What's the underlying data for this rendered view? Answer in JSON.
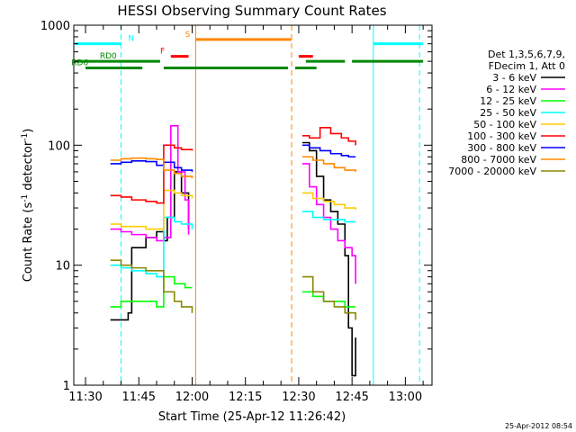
{
  "chart_data": {
    "type": "line",
    "title": "HESSI Observing Summary Count Rates",
    "ylabel_main": "Count Rate (s",
    "ylabel_sup": "-1",
    "ylabel_mid": " detector",
    "ylabel_sup2": "-1",
    "ylabel_end": ")",
    "xlabel": "Start Time (25-Apr-12 11:26:42)",
    "timestamp": "25-Apr-2012 08:54",
    "y_scale": "log",
    "ylim": [
      1,
      1000
    ],
    "xlim": [
      "11:26:42",
      "13:07:30"
    ],
    "y_ticks": [
      "1",
      "10",
      "100",
      "1000"
    ],
    "x_ticks": [
      "11:30",
      "11:45",
      "12:00",
      "12:15",
      "12:30",
      "12:45",
      "13:00"
    ],
    "legend_header": [
      "Det 1,3,5,6,7,9,",
      "FDecim 1, Att 0"
    ],
    "series": [
      {
        "name": "3 - 6 keV",
        "color": "#000000",
        "segments": [
          [
            [
              "11:37",
              3.5
            ],
            [
              "11:42",
              4
            ],
            [
              "11:43",
              14
            ],
            [
              "11:47",
              17
            ],
            [
              "11:50",
              19
            ],
            [
              "11:52",
              16
            ],
            [
              "11:53",
              25
            ],
            [
              "11:55",
              60
            ],
            [
              "11:57",
              40
            ],
            [
              "11:59",
              20
            ]
          ],
          [
            [
              "12:31",
              105
            ],
            [
              "12:33",
              90
            ],
            [
              "12:35",
              55
            ],
            [
              "12:37",
              35
            ],
            [
              "12:39",
              28
            ],
            [
              "12:41",
              22
            ],
            [
              "12:43",
              12
            ],
            [
              "12:44",
              3
            ],
            [
              "12:45",
              1.2
            ],
            [
              "12:46",
              2.5
            ]
          ]
        ]
      },
      {
        "name": "6 - 12 keV",
        "color": "#ff00ff",
        "segments": [
          [
            [
              "11:37",
              20
            ],
            [
              "11:40",
              19
            ],
            [
              "11:43",
              18
            ],
            [
              "11:47",
              17
            ],
            [
              "11:50",
              16
            ],
            [
              "11:52",
              17
            ],
            [
              "11:54",
              145
            ],
            [
              "11:56",
              60
            ],
            [
              "11:58",
              35
            ],
            [
              "11:59",
              18
            ]
          ],
          [
            [
              "12:31",
              70
            ],
            [
              "12:33",
              45
            ],
            [
              "12:35",
              32
            ],
            [
              "12:37",
              25
            ],
            [
              "12:39",
              20
            ],
            [
              "12:41",
              16
            ],
            [
              "12:43",
              14
            ],
            [
              "12:45",
              12
            ],
            [
              "12:46",
              7
            ]
          ]
        ]
      },
      {
        "name": "12 - 25 keV",
        "color": "#00ff00",
        "segments": [
          [
            [
              "11:37",
              4.5
            ],
            [
              "11:40",
              5
            ],
            [
              "11:43",
              5
            ],
            [
              "11:47",
              5
            ],
            [
              "11:50",
              4.5
            ],
            [
              "11:52",
              8
            ],
            [
              "11:55",
              7
            ],
            [
              "11:58",
              6.5
            ],
            [
              "12:00",
              6.5
            ]
          ],
          [
            [
              "12:31",
              6
            ],
            [
              "12:34",
              5.5
            ],
            [
              "12:37",
              5
            ],
            [
              "12:40",
              5
            ],
            [
              "12:43",
              4.5
            ],
            [
              "12:46",
              4.5
            ]
          ]
        ]
      },
      {
        "name": "25 - 50 keV",
        "color": "#00ffff",
        "segments": [
          [
            [
              "11:37",
              10
            ],
            [
              "11:40",
              9.5
            ],
            [
              "11:43",
              9
            ],
            [
              "11:47",
              8.5
            ],
            [
              "11:50",
              8
            ],
            [
              "11:52",
              25
            ],
            [
              "11:55",
              23
            ],
            [
              "11:57",
              22
            ],
            [
              "12:00",
              20
            ]
          ],
          [
            [
              "12:31",
              28
            ],
            [
              "12:34",
              25
            ],
            [
              "12:37",
              24
            ],
            [
              "12:40",
              24
            ],
            [
              "12:43",
              23
            ],
            [
              "12:46",
              23
            ]
          ]
        ]
      },
      {
        "name": "50 - 100 keV",
        "color": "#ffcc00",
        "segments": [
          [
            [
              "11:37",
              22
            ],
            [
              "11:40",
              21
            ],
            [
              "11:43",
              21
            ],
            [
              "11:47",
              20
            ],
            [
              "11:50",
              20
            ],
            [
              "11:52",
              42
            ],
            [
              "11:55",
              40
            ],
            [
              "11:57",
              38
            ],
            [
              "12:00",
              36
            ]
          ],
          [
            [
              "12:31",
              40
            ],
            [
              "12:34",
              36
            ],
            [
              "12:37",
              34
            ],
            [
              "12:40",
              32
            ],
            [
              "12:43",
              30
            ],
            [
              "12:46",
              29
            ]
          ]
        ]
      },
      {
        "name": "100 - 300 keV",
        "color": "#ff0000",
        "segments": [
          [
            [
              "11:37",
              38
            ],
            [
              "11:40",
              37
            ],
            [
              "11:43",
              35
            ],
            [
              "11:47",
              34
            ],
            [
              "11:50",
              33
            ],
            [
              "11:52",
              100
            ],
            [
              "11:55",
              95
            ],
            [
              "11:57",
              92
            ],
            [
              "12:00",
              90
            ]
          ],
          [
            [
              "12:31",
              120
            ],
            [
              "12:33",
              115
            ],
            [
              "12:36",
              140
            ],
            [
              "12:39",
              125
            ],
            [
              "12:42",
              115
            ],
            [
              "12:44",
              108
            ],
            [
              "12:46",
              100
            ]
          ]
        ]
      },
      {
        "name": "300 - 800 keV",
        "color": "#0000ff",
        "segments": [
          [
            [
              "11:37",
              70
            ],
            [
              "11:40",
              72
            ],
            [
              "11:43",
              74
            ],
            [
              "11:47",
              73
            ],
            [
              "11:50",
              68
            ],
            [
              "11:52",
              72
            ],
            [
              "11:55",
              65
            ],
            [
              "11:57",
              62
            ],
            [
              "12:00",
              60
            ]
          ],
          [
            [
              "12:31",
              100
            ],
            [
              "12:33",
              95
            ],
            [
              "12:36",
              90
            ],
            [
              "12:39",
              85
            ],
            [
              "12:42",
              82
            ],
            [
              "12:44",
              80
            ],
            [
              "12:46",
              80
            ]
          ]
        ]
      },
      {
        "name": "800 - 7000 keV",
        "color": "#ff8800",
        "segments": [
          [
            [
              "11:37",
              75
            ],
            [
              "11:40",
              77
            ],
            [
              "11:43",
              78
            ],
            [
              "11:47",
              77
            ],
            [
              "11:50",
              76
            ],
            [
              "11:52",
              62
            ],
            [
              "11:55",
              58
            ],
            [
              "11:57",
              55
            ],
            [
              "12:00",
              53
            ]
          ],
          [
            [
              "12:31",
              80
            ],
            [
              "12:34",
              75
            ],
            [
              "12:37",
              70
            ],
            [
              "12:40",
              65
            ],
            [
              "12:43",
              62
            ],
            [
              "12:46",
              60
            ]
          ]
        ]
      },
      {
        "name": "7000 - 20000 keV",
        "color": "#888800",
        "segments": [
          [
            [
              "11:37",
              11
            ],
            [
              "11:40",
              10
            ],
            [
              "11:43",
              9.5
            ],
            [
              "11:47",
              9
            ],
            [
              "11:50",
              9
            ],
            [
              "11:52",
              6
            ],
            [
              "11:55",
              5
            ],
            [
              "11:57",
              4.5
            ],
            [
              "12:00",
              4
            ]
          ],
          [
            [
              "12:31",
              8
            ],
            [
              "12:34",
              6
            ],
            [
              "12:37",
              5
            ],
            [
              "12:40",
              4.5
            ],
            [
              "12:43",
              4
            ],
            [
              "12:46",
              3.5
            ]
          ]
        ]
      }
    ],
    "flags": [
      {
        "label": "N",
        "color": "#00ffff",
        "y": 700,
        "spans": [
          [
            "11:27",
            "11:40"
          ],
          [
            "12:51",
            "13:05"
          ]
        ],
        "label_at": "11:42"
      },
      {
        "label": "F",
        "color": "#ff0000",
        "y": 550,
        "spans": [
          [
            "11:54",
            "11:59"
          ],
          [
            "12:30",
            "12:34"
          ]
        ],
        "label_at": "11:51"
      },
      {
        "label": "S",
        "color": "#ff8800",
        "y": 760,
        "spans": [
          [
            "12:01",
            "12:28"
          ]
        ],
        "label_at": "11:58"
      },
      {
        "label": "RD0",
        "color": "#008800",
        "y": 500,
        "spans": [
          [
            "11:27",
            "11:51"
          ],
          [
            "12:32",
            "12:43"
          ],
          [
            "12:45",
            "13:05"
          ]
        ],
        "label_at": "11:34"
      },
      {
        "label": "RD6",
        "color": "#008800",
        "y": 440,
        "spans": [
          [
            "11:30",
            "11:46"
          ],
          [
            "11:52",
            "12:27"
          ],
          [
            "12:29",
            "12:35"
          ]
        ],
        "label_at": "11:26"
      }
    ],
    "vlines": [
      {
        "t": "11:40",
        "color": "#00ffff",
        "style": "dashed"
      },
      {
        "t": "12:01",
        "color": "#ff8800",
        "style": "solid"
      },
      {
        "t": "12:28",
        "color": "#ff8800",
        "style": "dashed"
      },
      {
        "t": "12:51",
        "color": "#00ffff",
        "style": "solid"
      },
      {
        "t": "13:04",
        "color": "#00ffff",
        "style": "dashed"
      }
    ]
  }
}
